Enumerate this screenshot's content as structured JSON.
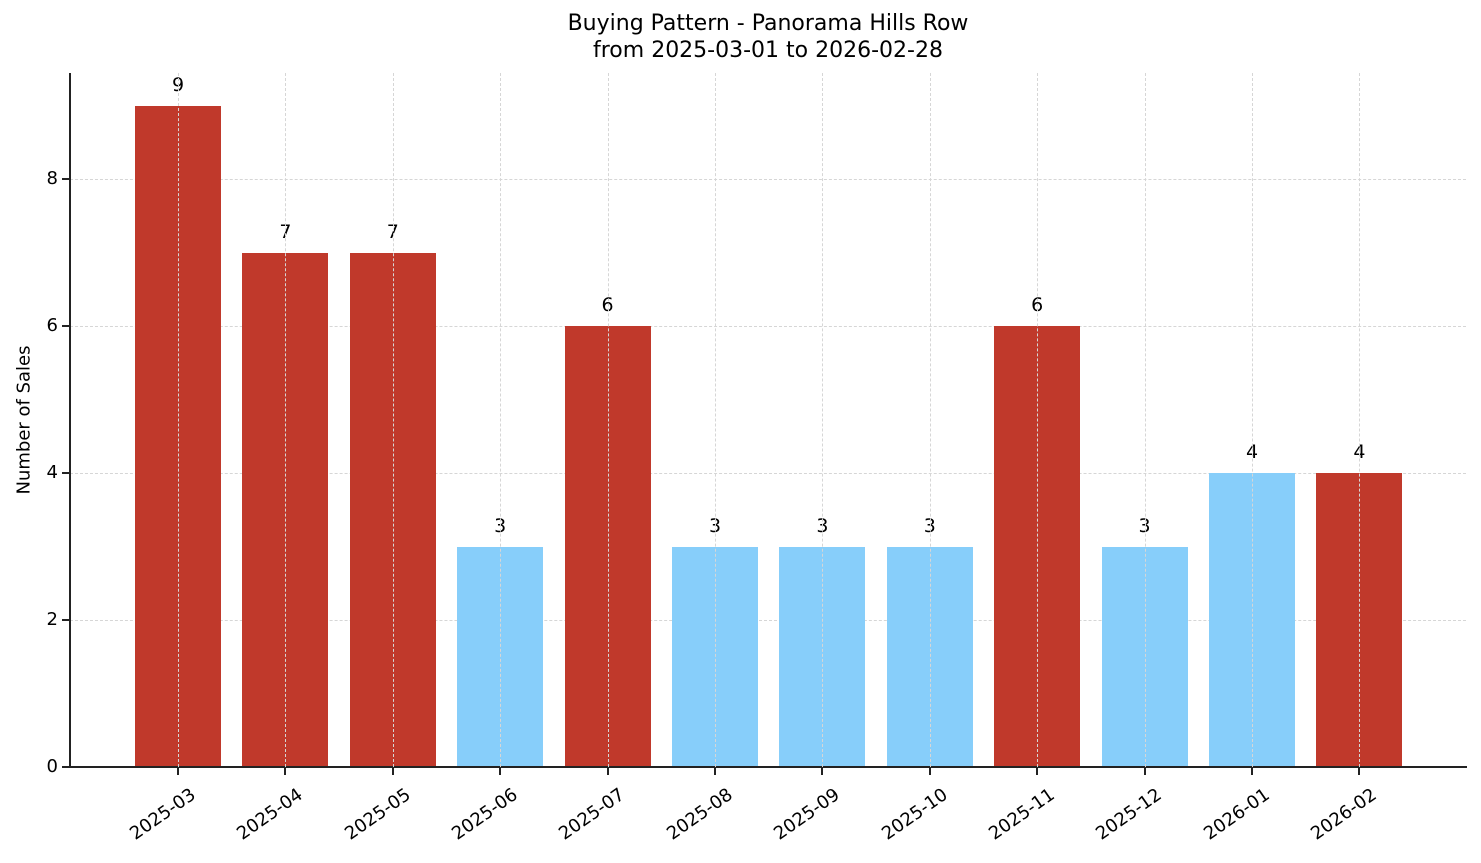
{
  "chart_data": {
    "type": "bar",
    "title": "Buying Pattern - Panorama Hills Row",
    "subtitle": "from 2025-03-01 to 2026-02-28",
    "xlabel": "",
    "ylabel": "Number of Sales",
    "ylim": [
      0,
      9.45
    ],
    "yticks": [
      0,
      2,
      4,
      6,
      8
    ],
    "grid": true,
    "legend": null,
    "categories": [
      "2025-03",
      "2025-04",
      "2025-05",
      "2025-06",
      "2025-07",
      "2025-08",
      "2025-09",
      "2025-10",
      "2025-11",
      "2025-12",
      "2026-01",
      "2026-02"
    ],
    "values": [
      9,
      7,
      7,
      3,
      6,
      3,
      3,
      3,
      6,
      3,
      4,
      4
    ],
    "bar_colors": [
      "#C0392B",
      "#C0392B",
      "#C0392B",
      "#87CEFA",
      "#C0392B",
      "#87CEFA",
      "#87CEFA",
      "#87CEFA",
      "#C0392B",
      "#87CEFA",
      "#87CEFA",
      "#C0392B"
    ],
    "data_labels": [
      "9",
      "7",
      "7",
      "3",
      "6",
      "3",
      "3",
      "3",
      "6",
      "3",
      "4",
      "4"
    ]
  },
  "colors": {
    "high": "#C0392B",
    "low": "#87CEFA"
  }
}
